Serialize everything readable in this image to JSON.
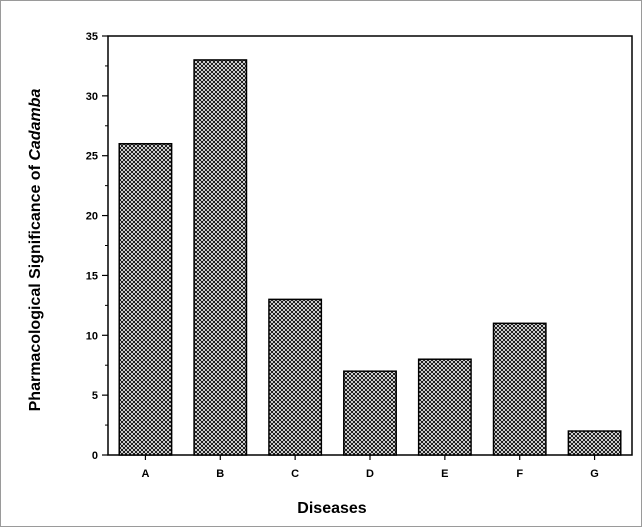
{
  "chart_data": {
    "type": "bar",
    "title": "",
    "xlabel": "Diseases",
    "ylabel_prefix": "Pharmacological Significance of ",
    "ylabel_italic": "Cadamba",
    "categories": [
      "A",
      "B",
      "C",
      "D",
      "E",
      "F",
      "G"
    ],
    "values": [
      26,
      33,
      13,
      7,
      8,
      11,
      2
    ],
    "ylim": [
      0,
      35
    ],
    "yticks": [
      "0",
      "5",
      "10",
      "15",
      "20",
      "25",
      "30",
      "35"
    ],
    "grid": false,
    "legend": "none",
    "bar_fill": "crosshatch",
    "bar_color": "#000000"
  }
}
